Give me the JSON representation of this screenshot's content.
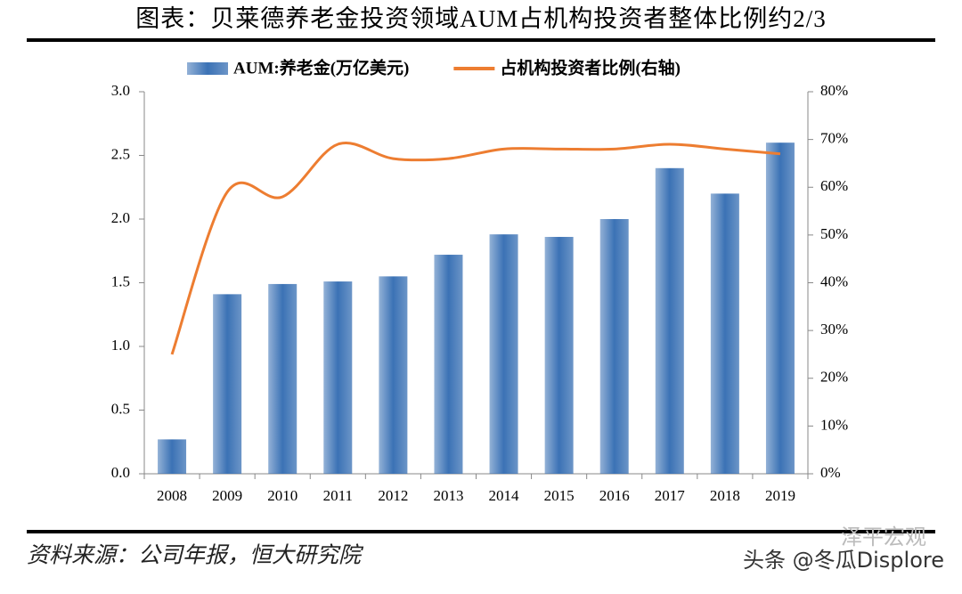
{
  "chart_data": {
    "type": "bar_line",
    "title": "图表：贝莱德养老金投资领域AUM占机构投资者整体比例约2/3",
    "categories": [
      "2008",
      "2009",
      "2010",
      "2011",
      "2012",
      "2013",
      "2014",
      "2015",
      "2016",
      "2017",
      "2018",
      "2019"
    ],
    "series": [
      {
        "name": "AUM:养老金(万亿美元)",
        "type": "bar",
        "color": "#3b72b5",
        "values": [
          0.27,
          1.41,
          1.49,
          1.51,
          1.55,
          1.72,
          1.88,
          1.86,
          2.0,
          2.4,
          2.2,
          2.6
        ]
      },
      {
        "name": "占机构投资者比例(右轴)",
        "type": "line",
        "axis": "y2",
        "color": "#ed7d31",
        "values": [
          25,
          59,
          58,
          69,
          66,
          66,
          68,
          68,
          68,
          69,
          68,
          67
        ]
      }
    ],
    "ylim": [
      0,
      3
    ],
    "yticks": [
      {
        "value": 0,
        "label": "0.0"
      },
      0.5,
      {
        "value": 1,
        "label": "1.0"
      },
      1.5,
      {
        "value": 2,
        "label": "2.0"
      },
      2.5,
      {
        "value": 3,
        "label": "3.0"
      }
    ],
    "y2lim": [
      0,
      80
    ],
    "y2ticks": [
      {
        "value": 0,
        "label": "0%"
      },
      {
        "value": 10,
        "label": "10%"
      },
      {
        "value": 20,
        "label": "20%"
      },
      {
        "value": 30,
        "label": "30%"
      },
      {
        "value": 40,
        "label": "40%"
      },
      {
        "value": 50,
        "label": "50%"
      },
      {
        "value": 60,
        "label": "60%"
      },
      {
        "value": 70,
        "label": "70%"
      },
      {
        "value": 80,
        "label": "80%"
      }
    ],
    "legend": "top",
    "source": "资料来源：公司年报，恒大研究院"
  },
  "watermark": [
    "泽平宏观",
    "头条 @冬瓜Displore"
  ]
}
